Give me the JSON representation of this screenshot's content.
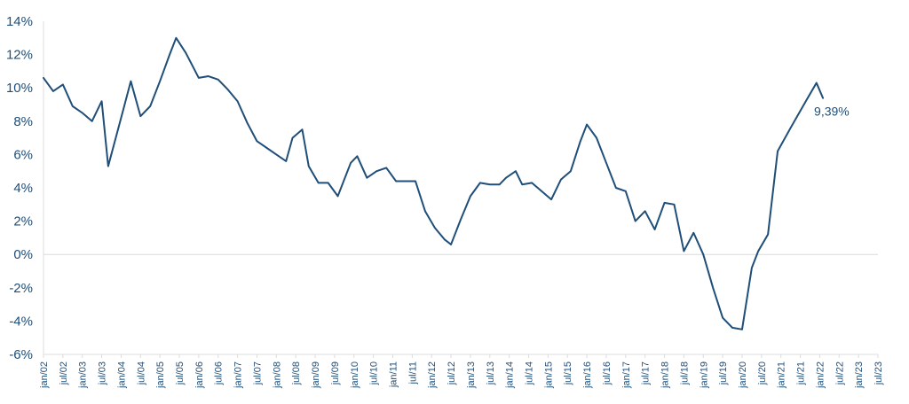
{
  "chart_data": {
    "type": "line",
    "title": "",
    "xlabel": "",
    "ylabel": "",
    "ylim": [
      -6,
      14
    ],
    "grid": false,
    "legend": "none",
    "colors": {
      "line": "#1f4e79",
      "axis": "#dcdcdc",
      "text": "#1f4e79"
    },
    "y_ticks": [
      "14%",
      "12%",
      "10%",
      "8%",
      "6%",
      "4%",
      "2%",
      "0%",
      "-2%",
      "-4%",
      "-6%"
    ],
    "y_tick_values": [
      14,
      12,
      10,
      8,
      6,
      4,
      2,
      0,
      -2,
      -4,
      -6
    ],
    "x_ticks": [
      "jan/02",
      "jul/02",
      "jan/03",
      "jul/03",
      "jan/04",
      "jul/04",
      "jan/05",
      "jul/05",
      "jan/06",
      "jul/06",
      "jan/07",
      "jul/07",
      "jan/08",
      "jul/08",
      "jan/09",
      "jul/09",
      "jan/10",
      "jul/10",
      "jan/11",
      "jul/11",
      "jan/12",
      "jul/12",
      "jan/13",
      "jul/13",
      "jan/14",
      "jul/14",
      "jan/15",
      "jul/15",
      "jan/16",
      "jul/16",
      "jan/17",
      "jul/17",
      "jan/18",
      "jul/18",
      "jan/19",
      "jul/19",
      "jan/20",
      "jul/20",
      "jan/21",
      "jul/21",
      "jan/22",
      "jul/22",
      "jan/23",
      "jul/23"
    ],
    "annotation": "9,39%",
    "series": [
      {
        "name": "",
        "points": [
          [
            "jan/02",
            10.6
          ],
          [
            "abr/02",
            9.8
          ],
          [
            "jul/02",
            10.2
          ],
          [
            "out/02",
            8.9
          ],
          [
            "jan/03",
            8.5
          ],
          [
            "abr/03",
            8.0
          ],
          [
            "jul/03",
            9.2
          ],
          [
            "set/03",
            5.3
          ],
          [
            "jan/04",
            8.2
          ],
          [
            "abr/04",
            10.4
          ],
          [
            "jul/04",
            8.3
          ],
          [
            "out/04",
            8.9
          ],
          [
            "jan/05",
            10.4
          ],
          [
            "abr/05",
            12.0
          ],
          [
            "jun/05",
            13.0
          ],
          [
            "set/05",
            12.1
          ],
          [
            "jan/06",
            10.6
          ],
          [
            "abr/06",
            10.7
          ],
          [
            "jul/06",
            10.5
          ],
          [
            "out/06",
            9.9
          ],
          [
            "jan/07",
            9.2
          ],
          [
            "abr/07",
            7.9
          ],
          [
            "jul/07",
            6.8
          ],
          [
            "out/07",
            6.4
          ],
          [
            "jan/08",
            6.0
          ],
          [
            "abr/08",
            5.6
          ],
          [
            "jun/08",
            7.0
          ],
          [
            "set/08",
            7.5
          ],
          [
            "nov/08",
            5.3
          ],
          [
            "fev/09",
            4.3
          ],
          [
            "mai/09",
            4.3
          ],
          [
            "ago/09",
            3.5
          ],
          [
            "dez/09",
            5.5
          ],
          [
            "fev/10",
            5.9
          ],
          [
            "mai/10",
            4.6
          ],
          [
            "ago/10",
            5.0
          ],
          [
            "nov/10",
            5.2
          ],
          [
            "fev/11",
            4.4
          ],
          [
            "mai/11",
            4.4
          ],
          [
            "ago/11",
            4.4
          ],
          [
            "nov/11",
            2.6
          ],
          [
            "fev/12",
            1.6
          ],
          [
            "mai/12",
            0.9
          ],
          [
            "jul/12",
            0.6
          ],
          [
            "out/12",
            2.1
          ],
          [
            "jan/13",
            3.5
          ],
          [
            "abr/13",
            4.3
          ],
          [
            "jul/13",
            4.2
          ],
          [
            "out/13",
            4.2
          ],
          [
            "dez/13",
            4.6
          ],
          [
            "mar/14",
            5.0
          ],
          [
            "mai/14",
            4.2
          ],
          [
            "ago/14",
            4.3
          ],
          [
            "nov/14",
            3.8
          ],
          [
            "fev/15",
            3.3
          ],
          [
            "mai/15",
            4.5
          ],
          [
            "ago/15",
            5.0
          ],
          [
            "nov/15",
            6.8
          ],
          [
            "jan/16",
            7.8
          ],
          [
            "abr/16",
            7.0
          ],
          [
            "jul/16",
            5.5
          ],
          [
            "out/16",
            4.0
          ],
          [
            "jan/17",
            3.8
          ],
          [
            "abr/17",
            2.0
          ],
          [
            "jul/17",
            2.6
          ],
          [
            "out/17",
            1.5
          ],
          [
            "jan/18",
            3.1
          ],
          [
            "abr/18",
            3.0
          ],
          [
            "jul/18",
            0.2
          ],
          [
            "out/18",
            1.3
          ],
          [
            "jan/19",
            0.0
          ],
          [
            "abr/19",
            -2.0
          ],
          [
            "jul/19",
            -3.8
          ],
          [
            "out/19",
            -4.4
          ],
          [
            "jan/20",
            -4.5
          ],
          [
            "abr/20",
            -0.8
          ],
          [
            "jun/20",
            0.2
          ],
          [
            "set/20",
            1.2
          ],
          [
            "dez/20",
            6.2
          ],
          [
            "abr/21",
            7.6
          ],
          [
            "set/21",
            9.3
          ],
          [
            "dez/21",
            10.3
          ],
          [
            "fev/22",
            9.39
          ]
        ]
      }
    ]
  }
}
